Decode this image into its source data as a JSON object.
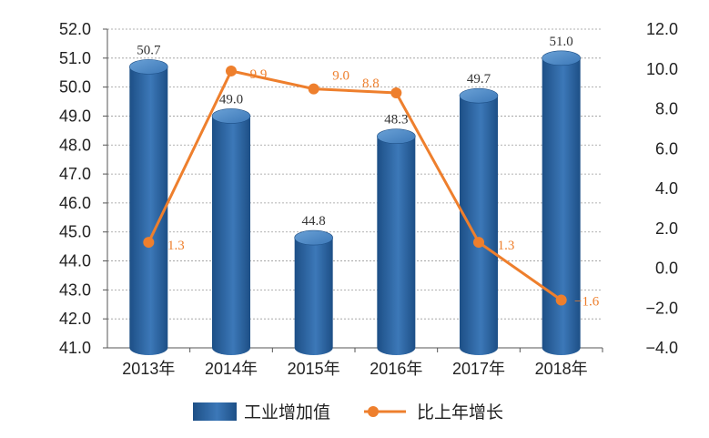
{
  "chart_data": {
    "type": "bar",
    "categories": [
      "2013年",
      "2014年",
      "2015年",
      "2016年",
      "2017年",
      "2018年"
    ],
    "series": [
      {
        "name": "工业增加值",
        "type": "bar",
        "axis": "left",
        "values": [
          50.7,
          49.0,
          44.8,
          48.3,
          49.7,
          51.0
        ],
        "labels": [
          "50.7",
          "49.0",
          "44.8",
          "48.3",
          "49.7",
          "51.0"
        ]
      },
      {
        "name": "比上年增长",
        "type": "line",
        "axis": "right",
        "values": [
          1.3,
          9.9,
          9.0,
          8.8,
          1.3,
          -1.6
        ],
        "labels": [
          "1.3",
          "9.9",
          "9.0",
          "8.8",
          "1.3",
          "−1.6"
        ]
      }
    ],
    "y_left": {
      "range": [
        41.0,
        52.0
      ],
      "ticks": [
        "52.0",
        "51.0",
        "50.0",
        "49.0",
        "48.0",
        "47.0",
        "46.0",
        "45.0",
        "44.0",
        "43.0",
        "42.0",
        "41.0"
      ]
    },
    "y_right": {
      "range": [
        -4.0,
        12.0
      ],
      "ticks": [
        "12.0",
        "10.0",
        "8.0",
        "6.0",
        "4.0",
        "2.0",
        "0.0",
        "−2.0",
        "−4.0"
      ]
    },
    "grid": true,
    "legend_position": "bottom",
    "colors": {
      "bar_dark": "#1d4f86",
      "bar_mid": "#3c78b8",
      "bar_light": "#6aa1d6",
      "line": "#ee7f2d",
      "grid": "#999999",
      "text": "#222222",
      "bar_label": "#333333"
    }
  }
}
